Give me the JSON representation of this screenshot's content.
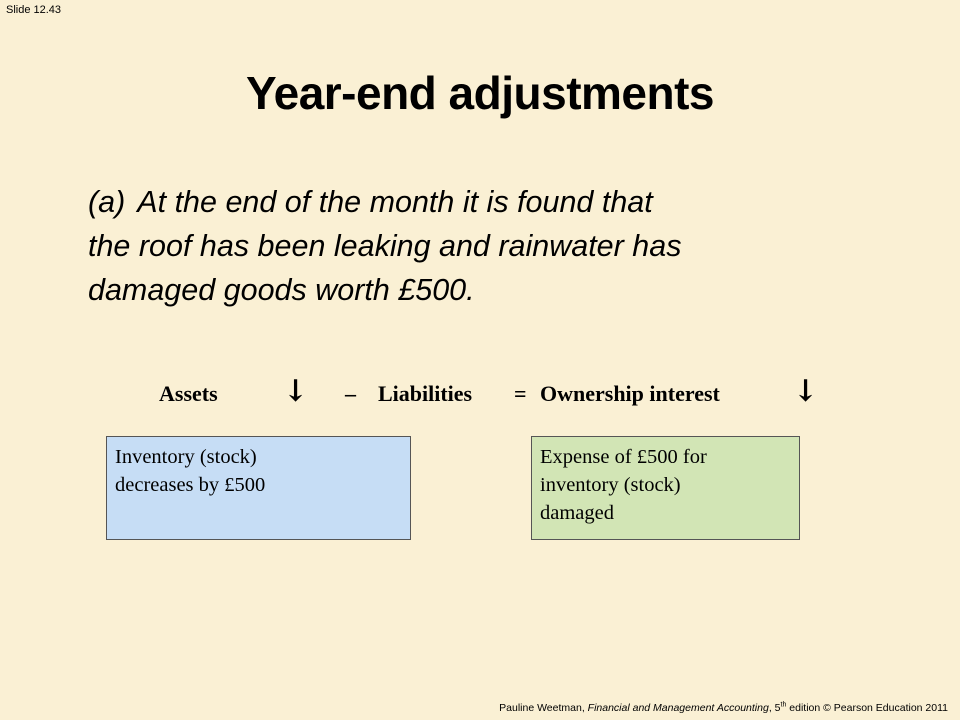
{
  "slide_number": "Slide 12.43",
  "title": "Year-end adjustments",
  "body": {
    "label": "(a)",
    "lines": [
      "At the end of the month it is found that",
      "the roof has been leaking and rainwater has",
      "damaged goods worth £500."
    ]
  },
  "equation": {
    "assets": "Assets",
    "assets_arrow": "↓",
    "minus": "–",
    "liabilities": "Liabilities",
    "equals": "=",
    "ownership": "Ownership interest",
    "ownership_arrow": "↓"
  },
  "boxes": {
    "left": {
      "lines": [
        "Inventory (stock)",
        "decreases by £500"
      ],
      "color": "#C6DDF5"
    },
    "right": {
      "lines": [
        "Expense of £500 for",
        "inventory (stock)",
        "damaged"
      ],
      "color": "#D2E5B5"
    }
  },
  "footer": {
    "author": "Pauline Weetman, ",
    "book": "Financial and Management Accounting",
    "edition_pre": ", 5",
    "edition_sup": "th",
    "edition_post": " edition © Pearson Education 2011"
  },
  "colors": {
    "background": "#FAF0D4"
  }
}
